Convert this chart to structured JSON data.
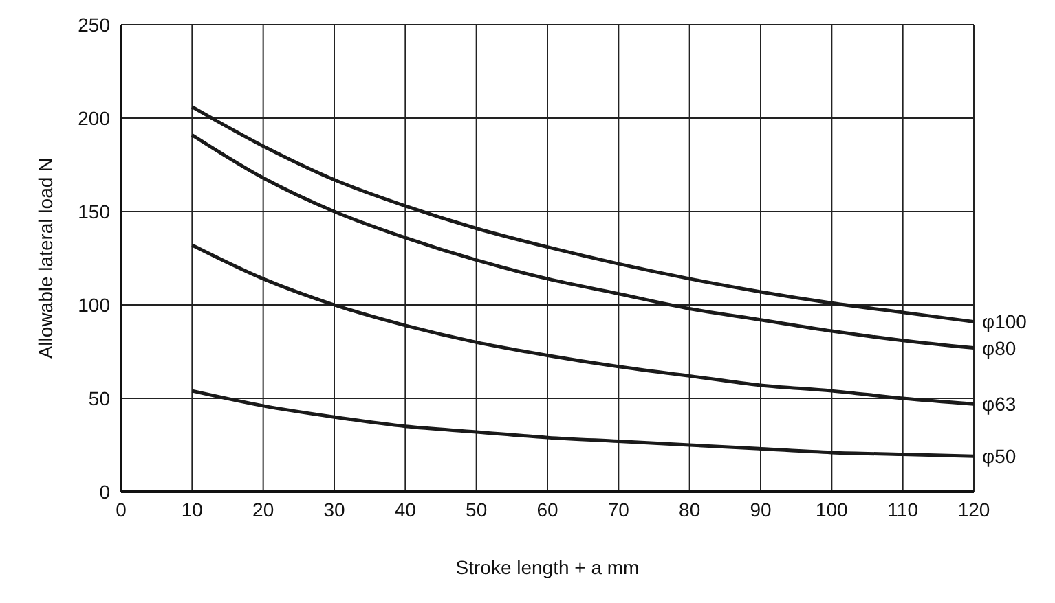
{
  "chart_data": {
    "type": "line",
    "xlabel": "Stroke length + a mm",
    "ylabel": "Allowable lateral load N",
    "x": [
      10,
      20,
      30,
      40,
      50,
      60,
      70,
      80,
      90,
      100,
      110,
      120
    ],
    "series": [
      {
        "name": "φ100",
        "color": "#1a1a1a",
        "values": [
          206,
          185,
          167,
          153,
          141,
          131,
          122,
          114,
          107,
          101,
          96,
          91
        ]
      },
      {
        "name": "φ80",
        "color": "#1a1a1a",
        "values": [
          191,
          168,
          150,
          136,
          124,
          114,
          106,
          98,
          92,
          86,
          81,
          77
        ]
      },
      {
        "name": "φ63",
        "color": "#1a1a1a",
        "values": [
          132,
          114,
          100,
          89,
          80,
          73,
          67,
          62,
          57,
          54,
          50,
          47
        ]
      },
      {
        "name": "φ50",
        "color": "#1a1a1a",
        "values": [
          54,
          46,
          40,
          35,
          32,
          29,
          27,
          25,
          23,
          21,
          20,
          19
        ]
      }
    ],
    "xlim": [
      0,
      120
    ],
    "xticks": [
      0,
      10,
      20,
      30,
      40,
      50,
      60,
      70,
      80,
      90,
      100,
      110,
      120
    ],
    "ylim": [
      0,
      250
    ],
    "yticks": [
      0,
      50,
      100,
      150,
      200,
      250
    ],
    "grid": true,
    "legend": false,
    "marker": "none",
    "line_style": "solid"
  }
}
